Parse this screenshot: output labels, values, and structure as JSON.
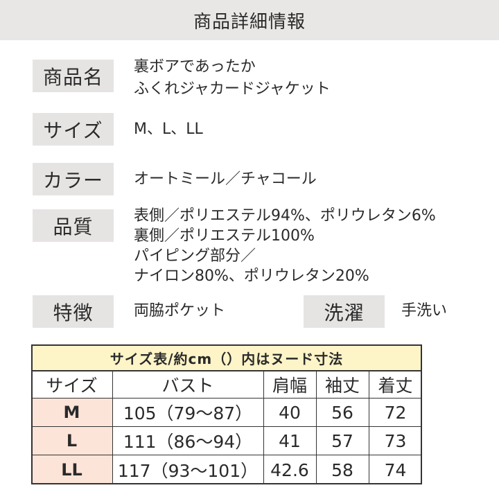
{
  "header": {
    "title": "商品詳細情報"
  },
  "details": {
    "name": {
      "label": "商品名",
      "lines": [
        "裏ボアであったか",
        "ふくれジャカードジャケット"
      ]
    },
    "size": {
      "label": "サイズ",
      "value": "M、L、LL"
    },
    "color": {
      "label": "カラー",
      "value": "オートミール／チャコール"
    },
    "quality": {
      "label": "品質",
      "lines": [
        "表側／ポリエステル94%、ポリウレタン6%",
        "裏側／ポリエステル100%",
        "パイピング部分／",
        "ナイロン80%、ポリウレタン20%"
      ]
    },
    "feature": {
      "label": "特徴",
      "value": "両脇ポケット"
    },
    "wash": {
      "label": "洗濯",
      "value": "手洗い"
    }
  },
  "size_table": {
    "title": "サイズ表/約cm（）内はヌード寸法",
    "headers": [
      "サイズ",
      "バスト",
      "肩幅",
      "袖丈",
      "着丈"
    ],
    "rows": [
      [
        "M",
        "105（79〜87）",
        "40",
        "56",
        "72"
      ],
      [
        "L",
        "111（86〜94）",
        "41",
        "57",
        "73"
      ],
      [
        "LL",
        "117（93〜101）",
        "42.6",
        "58",
        "74"
      ]
    ]
  },
  "colors": {
    "header_bg": "#e9e7e6",
    "label_bg": "#e6e4e3",
    "table_title_bg": "#fdf4c8",
    "size_cell_bg": "#fde4d8"
  }
}
